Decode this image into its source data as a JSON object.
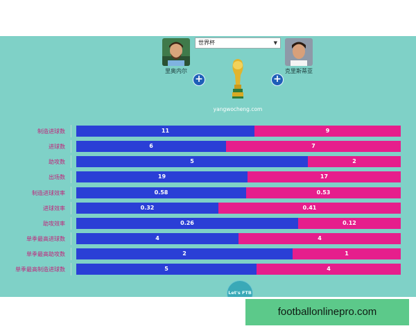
{
  "header": {
    "tournament_selected": "世界杯",
    "player_left": {
      "name": "里奥内尔"
    },
    "player_right": {
      "name": "克里斯蒂亚"
    },
    "add_symbol": "+",
    "site_caption": "yangwocheng.com",
    "dropdown_arrow": "▼"
  },
  "colors": {
    "left": "#2a3fd6",
    "right": "#e61e8c",
    "label": "#c0247a",
    "panel": "#7fd1c7"
  },
  "stats": [
    {
      "label": "制造进球数",
      "left": 11,
      "right": 9,
      "left_text": "11",
      "right_text": "9"
    },
    {
      "label": "进球数",
      "left": 6,
      "right": 7,
      "left_text": "6",
      "right_text": "7"
    },
    {
      "label": "助攻数",
      "left": 5,
      "right": 2,
      "left_text": "5",
      "right_text": "2"
    },
    {
      "label": "出场数",
      "left": 19,
      "right": 17,
      "left_text": "19",
      "right_text": "17"
    },
    {
      "label": "制造进球效率",
      "left": 0.58,
      "right": 0.53,
      "left_text": "0.58",
      "right_text": "0.53"
    },
    {
      "label": "进球效率",
      "left": 0.32,
      "right": 0.41,
      "left_text": "0.32",
      "right_text": "0.41"
    },
    {
      "label": "助攻效率",
      "left": 0.26,
      "right": 0.12,
      "left_text": "0.26",
      "right_text": "0.12"
    },
    {
      "label": "单季最高进球数",
      "left": 4,
      "right": 4,
      "left_text": "4",
      "right_text": "4"
    },
    {
      "label": "单季最高助攻数",
      "left": 2,
      "right": 1,
      "left_text": "2",
      "right_text": "1"
    },
    {
      "label": "单季最高制造进球数",
      "left": 5,
      "right": 4,
      "left_text": "5",
      "right_text": "4"
    }
  ],
  "footer": {
    "logo_text": "Let's FTB"
  },
  "watermark": "footballonlinepro.com"
}
